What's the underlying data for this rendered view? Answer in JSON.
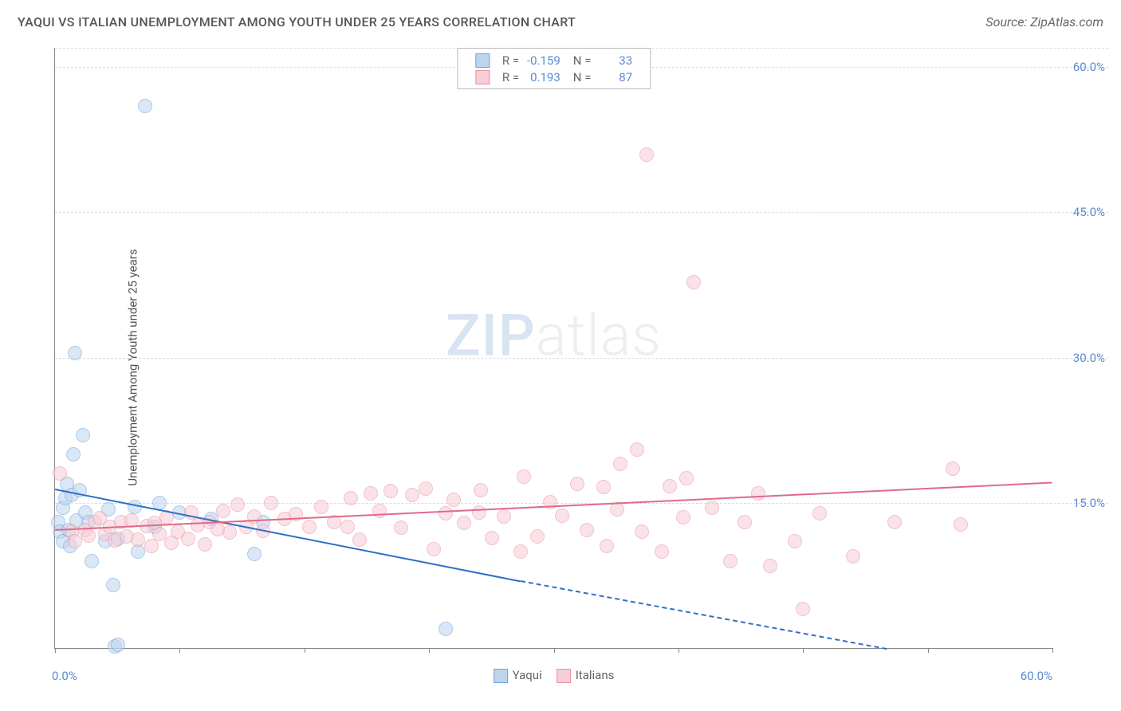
{
  "title": "YAQUI VS ITALIAN UNEMPLOYMENT AMONG YOUTH UNDER 25 YEARS CORRELATION CHART",
  "source": "Source: ZipAtlas.com",
  "ylabel": "Unemployment Among Youth under 25 years",
  "watermark_bold": "ZIP",
  "watermark_rest": "atlas",
  "chart": {
    "type": "scatter",
    "xlim": [
      0,
      60
    ],
    "ylim": [
      0,
      62
    ],
    "xtick_positions": [
      0,
      7.5,
      15,
      22.5,
      30,
      37.5,
      45,
      52.5,
      60
    ],
    "xtick_labels": {
      "0": "0.0%",
      "60": "60.0%"
    },
    "ytick_positions": [
      15,
      30,
      45,
      60
    ],
    "ytick_labels": {
      "15": "15.0%",
      "30": "30.0%",
      "45": "45.0%",
      "60": "60.0%"
    },
    "grid_color": "#dddddd",
    "axis_color": "#888888",
    "background_color": "#ffffff",
    "label_color": "#5b8bd4",
    "title_color": "#555555",
    "title_fontsize": 16,
    "label_fontsize": 15,
    "marker_radius": 9,
    "marker_opacity": 0.55,
    "series": [
      {
        "name": "Yaqui",
        "fill": "#bdd4ee",
        "stroke": "#6ea0dd",
        "line_color": "#2f6fc6",
        "R": "-0.159",
        "N": "33",
        "trend": {
          "x1": 0,
          "y1": 16.5,
          "x2": 28,
          "y2": 7.0,
          "x2_ext": 50,
          "y2_ext": 0.0
        },
        "points": [
          [
            0.2,
            13.0
          ],
          [
            0.3,
            12.0
          ],
          [
            0.5,
            14.5
          ],
          [
            0.5,
            11.0
          ],
          [
            0.6,
            15.5
          ],
          [
            0.7,
            17.0
          ],
          [
            0.8,
            12.2
          ],
          [
            0.9,
            10.5
          ],
          [
            1.0,
            15.8
          ],
          [
            1.1,
            20.0
          ],
          [
            1.2,
            30.5
          ],
          [
            1.3,
            13.2
          ],
          [
            1.5,
            16.3
          ],
          [
            1.7,
            22.0
          ],
          [
            1.8,
            14.0
          ],
          [
            2.0,
            13.0
          ],
          [
            2.2,
            9.0
          ],
          [
            3.0,
            11.0
          ],
          [
            3.2,
            14.3
          ],
          [
            3.5,
            6.5
          ],
          [
            3.6,
            0.2
          ],
          [
            3.8,
            0.3
          ],
          [
            3.8,
            11.3
          ],
          [
            4.8,
            14.6
          ],
          [
            5.0,
            10.0
          ],
          [
            5.4,
            56.0
          ],
          [
            6.0,
            12.5
          ],
          [
            6.3,
            15.0
          ],
          [
            7.5,
            14.0
          ],
          [
            9.4,
            13.3
          ],
          [
            12.0,
            9.7
          ],
          [
            12.5,
            13.0
          ],
          [
            23.5,
            2.0
          ]
        ]
      },
      {
        "name": "Italians",
        "fill": "#f7cdd6",
        "stroke": "#e98fa4",
        "line_color": "#e06a88",
        "R": "0.193",
        "N": "87",
        "trend": {
          "x1": 0,
          "y1": 12.3,
          "x2": 60,
          "y2": 17.2
        },
        "points": [
          [
            0.3,
            18.0
          ],
          [
            1.0,
            12.0
          ],
          [
            1.2,
            11.0
          ],
          [
            1.8,
            12.2
          ],
          [
            2.0,
            11.6
          ],
          [
            2.4,
            13.0
          ],
          [
            2.7,
            13.4
          ],
          [
            3.0,
            11.8
          ],
          [
            3.3,
            12.5
          ],
          [
            3.6,
            11.1
          ],
          [
            4.0,
            13.0
          ],
          [
            4.3,
            11.5
          ],
          [
            4.6,
            13.2
          ],
          [
            5.0,
            11.2
          ],
          [
            5.5,
            12.6
          ],
          [
            5.8,
            10.5
          ],
          [
            6.0,
            12.9
          ],
          [
            6.3,
            11.8
          ],
          [
            6.7,
            13.5
          ],
          [
            7.0,
            10.9
          ],
          [
            7.4,
            12.0
          ],
          [
            8.0,
            11.3
          ],
          [
            8.2,
            14.0
          ],
          [
            8.6,
            12.7
          ],
          [
            9.0,
            10.7
          ],
          [
            9.3,
            13.0
          ],
          [
            9.8,
            12.3
          ],
          [
            10.1,
            14.2
          ],
          [
            10.5,
            11.9
          ],
          [
            11.0,
            14.8
          ],
          [
            11.5,
            12.5
          ],
          [
            12.0,
            13.6
          ],
          [
            12.5,
            12.1
          ],
          [
            13.0,
            15.0
          ],
          [
            13.8,
            13.3
          ],
          [
            14.5,
            13.8
          ],
          [
            15.3,
            12.5
          ],
          [
            16.0,
            14.6
          ],
          [
            16.8,
            13.0
          ],
          [
            17.6,
            12.5
          ],
          [
            17.8,
            15.5
          ],
          [
            18.3,
            11.2
          ],
          [
            19.0,
            16.0
          ],
          [
            19.5,
            14.2
          ],
          [
            20.2,
            16.2
          ],
          [
            20.8,
            12.4
          ],
          [
            21.5,
            15.8
          ],
          [
            22.3,
            16.5
          ],
          [
            22.8,
            10.2
          ],
          [
            23.5,
            13.9
          ],
          [
            24.0,
            15.3
          ],
          [
            24.6,
            12.9
          ],
          [
            25.5,
            14.0
          ],
          [
            25.6,
            16.3
          ],
          [
            26.3,
            11.4
          ],
          [
            27.0,
            13.6
          ],
          [
            28.0,
            10.0
          ],
          [
            28.2,
            17.7
          ],
          [
            29.0,
            11.5
          ],
          [
            29.8,
            15.1
          ],
          [
            30.5,
            13.7
          ],
          [
            31.4,
            17.0
          ],
          [
            32.0,
            12.2
          ],
          [
            33.0,
            16.6
          ],
          [
            33.2,
            10.5
          ],
          [
            33.8,
            14.3
          ],
          [
            34.0,
            19.0
          ],
          [
            35.0,
            20.5
          ],
          [
            35.3,
            12.0
          ],
          [
            35.6,
            51.0
          ],
          [
            36.5,
            10.0
          ],
          [
            37.0,
            16.7
          ],
          [
            37.8,
            13.5
          ],
          [
            38.0,
            17.5
          ],
          [
            38.4,
            37.8
          ],
          [
            39.5,
            14.5
          ],
          [
            40.6,
            9.0
          ],
          [
            41.5,
            13.0
          ],
          [
            42.3,
            16.0
          ],
          [
            43.0,
            8.5
          ],
          [
            44.5,
            11.0
          ],
          [
            45.0,
            4.0
          ],
          [
            46.0,
            13.9
          ],
          [
            48.0,
            9.5
          ],
          [
            50.5,
            13.0
          ],
          [
            54.0,
            18.5
          ],
          [
            54.5,
            12.8
          ]
        ]
      }
    ]
  },
  "legend_top_labels": {
    "R": "R =",
    "N": "N ="
  },
  "legend_bottom": [
    {
      "label": "Yaqui",
      "fill": "#bdd4ee",
      "stroke": "#6ea0dd"
    },
    {
      "label": "Italians",
      "fill": "#f7cdd6",
      "stroke": "#e98fa4"
    }
  ]
}
